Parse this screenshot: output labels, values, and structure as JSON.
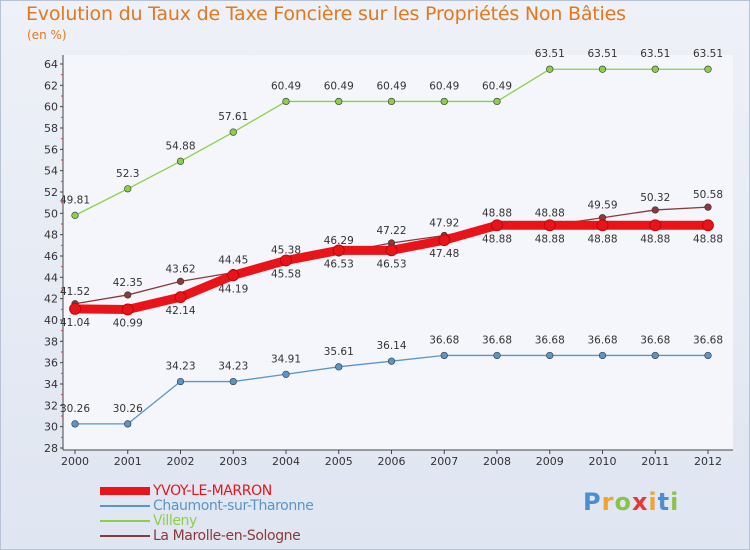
{
  "chart_data": {
    "type": "line",
    "title": "Evolution du Taux de Taxe Foncière sur les Propriétés Non Bâties",
    "ylabel": "(en %)",
    "xlabel": "",
    "ylim": [
      28,
      64
    ],
    "yticks": [
      28,
      30,
      32,
      34,
      36,
      38,
      40,
      42,
      44,
      46,
      48,
      50,
      52,
      54,
      56,
      58,
      60,
      62,
      64
    ],
    "categories": [
      "2000",
      "2001",
      "2002",
      "2003",
      "2004",
      "2005",
      "2006",
      "2007",
      "2008",
      "2009",
      "2010",
      "2011",
      "2012"
    ],
    "series": [
      {
        "name": "YVOY-LE-MARRON",
        "color": "#e8141a",
        "values": [
          41.04,
          40.99,
          42.14,
          44.19,
          45.58,
          46.53,
          46.53,
          47.48,
          48.88,
          48.88,
          48.88,
          48.88,
          48.88
        ],
        "labels": [
          "41.04",
          "40.99",
          "42.14",
          "44.19",
          "45.58",
          "46.53",
          "46.53",
          "47.48",
          "48.88",
          "48.88",
          "48.88",
          "48.88",
          "48.88"
        ]
      },
      {
        "name": "Chaumont-sur-Tharonne",
        "color": "#5a95c8",
        "values": [
          30.26,
          30.26,
          34.23,
          34.23,
          34.91,
          35.61,
          36.14,
          36.68,
          36.68,
          36.68,
          36.68,
          36.68,
          36.68
        ],
        "labels": [
          "30.26",
          "30.26",
          "34.23",
          "34.23",
          "34.91",
          "35.61",
          "36.14",
          "36.68",
          "36.68",
          "36.68",
          "36.68",
          "36.68",
          "36.68"
        ]
      },
      {
        "name": "Villeny",
        "color": "#8ccf4a",
        "values": [
          49.81,
          52.3,
          54.88,
          57.61,
          60.49,
          60.49,
          60.49,
          60.49,
          60.49,
          63.51,
          63.51,
          63.51,
          63.51
        ],
        "labels": [
          "49.81",
          "52.3",
          "54.88",
          "57.61",
          "60.49",
          "60.49",
          "60.49",
          "60.49",
          "60.49",
          "63.51",
          "63.51",
          "63.51",
          "63.51"
        ]
      },
      {
        "name": "La Marolle-en-Sologne",
        "color": "#8a3a3a",
        "values": [
          41.52,
          42.35,
          43.62,
          44.45,
          45.38,
          46.29,
          47.22,
          47.92,
          48.88,
          48.88,
          49.59,
          50.32,
          50.58
        ],
        "labels": [
          "41.52",
          "42.35",
          "43.62",
          "44.45",
          "45.38",
          "46.29",
          "47.22",
          "47.92",
          "48.88",
          "48.88",
          "49.59",
          "50.32",
          "50.58"
        ]
      }
    ],
    "legend_position": "bottom-left",
    "grid": false
  },
  "logo": {
    "letters": [
      "P",
      "r",
      "o",
      "x",
      "i",
      "t",
      "i"
    ]
  }
}
